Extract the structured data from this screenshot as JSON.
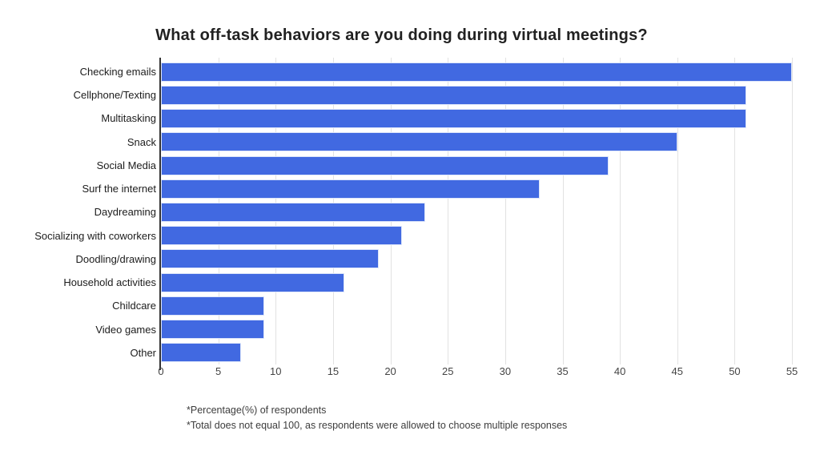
{
  "page": {
    "background": "#ffffff"
  },
  "chart_data": {
    "type": "bar",
    "orientation": "horizontal",
    "title": "What off-task behaviors are you doing during virtual meetings?",
    "categories": [
      "Checking emails",
      "Cellphone/Texting",
      "Multitasking",
      "Snack",
      "Social Media",
      "Surf the internet",
      "Daydreaming",
      "Socializing with coworkers",
      "Doodling/drawing",
      "Household activities",
      "Childcare",
      "Video games",
      "Other"
    ],
    "values": [
      55,
      51,
      51,
      45,
      39,
      33,
      23,
      21,
      19,
      16,
      9,
      9,
      7
    ],
    "xlabel": "",
    "ylabel": "",
    "unit": "percent",
    "xlim": [
      0,
      56.6
    ],
    "x_ticks": [
      0,
      5,
      10,
      15,
      20,
      25,
      30,
      35,
      40,
      45,
      50,
      55
    ],
    "grid": true,
    "legend": "none",
    "bar_color": "#4169e1",
    "axis_color": "#333333",
    "gridline_color": "#e2e2e2",
    "footnotes": [
      "*Percentage(%) of respondents",
      "*Total does not equal 100, as respondents were allowed to choose multiple responses"
    ]
  }
}
